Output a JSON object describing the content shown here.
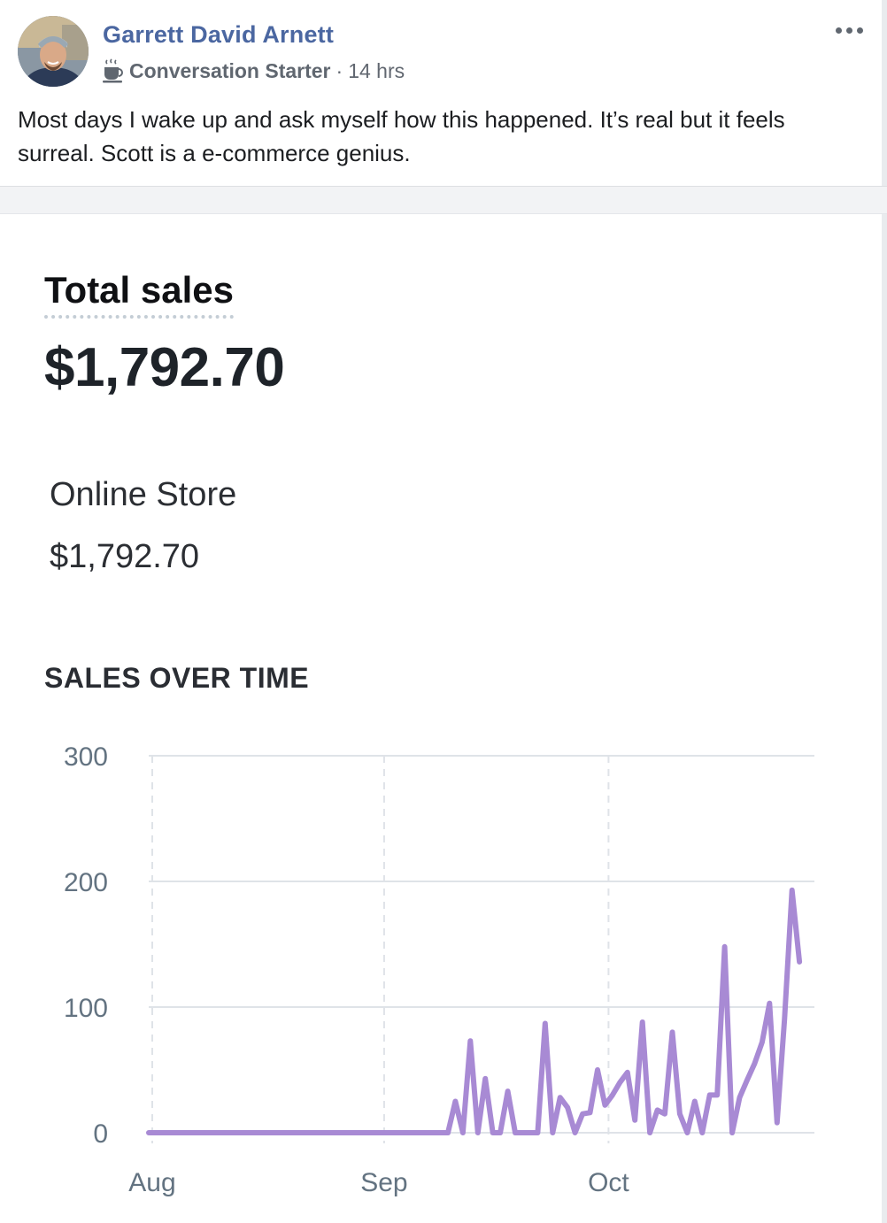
{
  "post": {
    "author": "Garrett David Arnett",
    "badge": "Conversation Starter",
    "separator": "·",
    "time": "14 hrs",
    "text": "Most days I wake up and ask myself how this happened. It’s real but it feels surreal. Scott is a e-commerce genius."
  },
  "icons": {
    "avatar": "profile-photo",
    "badge": "coffee-cup-icon",
    "menu": "more-options-icon"
  },
  "report": {
    "total_label": "Total sales",
    "total_value": "$1,792.70",
    "channel_label": "Online Store",
    "channel_value": "$1,792.70",
    "chart_title": "SALES OVER TIME"
  },
  "colors": {
    "author_link": "#4b67a1",
    "series": "#a88ad4"
  },
  "chart_data": {
    "type": "line",
    "title": "SALES OVER TIME",
    "xlabel": "",
    "ylabel": "",
    "ylim": [
      0,
      300
    ],
    "yticks": [
      0,
      100,
      200,
      300
    ],
    "x_labels": [
      "Aug",
      "Sep",
      "Oct"
    ],
    "x_label_days": [
      0,
      31,
      61
    ],
    "x_range_days": [
      0,
      89
    ],
    "grid": true,
    "series": [
      {
        "points": [
          [
            0,
            0
          ],
          [
            40,
            0
          ],
          [
            41,
            25
          ],
          [
            42,
            0
          ],
          [
            43,
            73
          ],
          [
            44,
            0
          ],
          [
            45,
            43
          ],
          [
            46,
            0
          ],
          [
            47,
            0
          ],
          [
            48,
            33
          ],
          [
            49,
            0
          ],
          [
            50,
            0
          ],
          [
            51,
            0
          ],
          [
            52,
            0
          ],
          [
            53,
            87
          ],
          [
            54,
            0
          ],
          [
            55,
            28
          ],
          [
            56,
            20
          ],
          [
            57,
            0
          ],
          [
            58,
            15
          ],
          [
            59,
            16
          ],
          [
            60,
            50
          ],
          [
            61,
            22
          ],
          [
            62,
            30
          ],
          [
            63,
            40
          ],
          [
            64,
            48
          ],
          [
            65,
            10
          ],
          [
            66,
            88
          ],
          [
            67,
            0
          ],
          [
            68,
            18
          ],
          [
            69,
            15
          ],
          [
            70,
            80
          ],
          [
            71,
            15
          ],
          [
            72,
            0
          ],
          [
            73,
            25
          ],
          [
            74,
            0
          ],
          [
            75,
            30
          ],
          [
            76,
            30
          ],
          [
            77,
            148
          ],
          [
            78,
            0
          ],
          [
            79,
            28
          ],
          [
            80,
            42
          ],
          [
            81,
            55
          ],
          [
            82,
            72
          ],
          [
            83,
            103
          ],
          [
            84,
            8
          ],
          [
            85,
            90
          ],
          [
            86,
            193
          ],
          [
            87,
            136
          ]
        ]
      }
    ]
  }
}
